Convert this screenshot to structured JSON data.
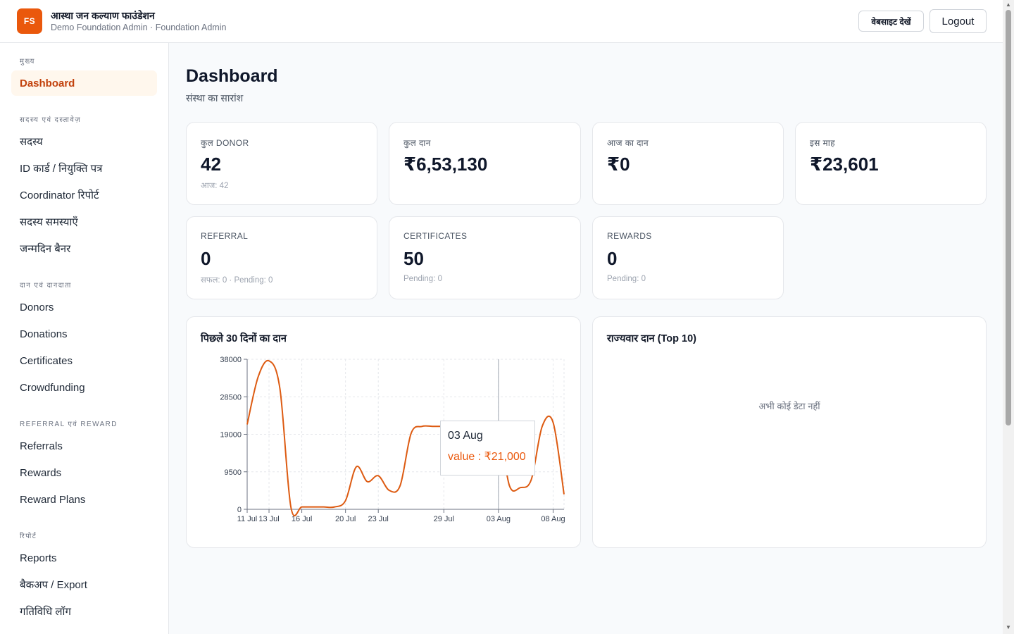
{
  "header": {
    "logo_text": "FS",
    "org_name": "आस्था जन कल्याण फाउंडेशन",
    "org_sub": "Demo Foundation Admin · Foundation Admin",
    "website_button": "वेबसाइट देखें",
    "logout_button": "Logout"
  },
  "sidebar": {
    "sections": [
      {
        "title": "मुख्य",
        "items": [
          "Dashboard"
        ]
      },
      {
        "title": "सदस्य एवं दस्तावेज़",
        "items": [
          "सदस्य",
          "ID कार्ड / नियुक्ति पत्र",
          "Coordinator रिपोर्ट",
          "सदस्य समस्याएँ",
          "जन्मदिन बैनर"
        ]
      },
      {
        "title": "दान एवं दानदाता",
        "items": [
          "Donors",
          "Donations",
          "Certificates",
          "Crowdfunding"
        ]
      },
      {
        "title": "Referral एवं Reward",
        "items": [
          "Referrals",
          "Rewards",
          "Reward Plans"
        ]
      },
      {
        "title": "रिपोर्ट",
        "items": [
          "Reports",
          "बैकअप / Export",
          "गतिविधि लॉग"
        ]
      }
    ],
    "active_item": "Dashboard"
  },
  "page": {
    "title": "Dashboard",
    "subtitle": "संस्था का सारांश"
  },
  "stats": [
    {
      "label": "कुल DONOR",
      "value": "42",
      "note": "आज: 42"
    },
    {
      "label": "कुल दान",
      "value": "₹6,53,130",
      "note": ""
    },
    {
      "label": "आज का दान",
      "value": "₹0",
      "note": ""
    },
    {
      "label": "इस माह",
      "value": "₹23,601",
      "note": ""
    },
    {
      "label": "REFERRAL",
      "value": "0",
      "note": "सफल: 0 · Pending: 0"
    },
    {
      "label": "CERTIFICATES",
      "value": "50",
      "note": "Pending: 0"
    },
    {
      "label": "REWARDS",
      "value": "0",
      "note": "Pending: 0"
    }
  ],
  "donation_panel": {
    "title": "पिछले 30 दिनों का दान",
    "tooltip": {
      "date": "03 Aug",
      "value_text": "value : ₹21,000"
    }
  },
  "state_panel": {
    "title": "राज्यवार दान (Top 10)",
    "empty_text": "अभी कोई डेटा नहीं"
  },
  "chart_data": {
    "type": "line",
    "series": [
      {
        "x": [
          "11 Jul",
          "12 Jul",
          "13 Jul",
          "14 Jul",
          "15 Jul",
          "16 Jul",
          "17 Jul",
          "18 Jul",
          "19 Jul",
          "20 Jul",
          "21 Jul",
          "22 Jul",
          "23 Jul",
          "24 Jul",
          "25 Jul",
          "26 Jul",
          "27 Jul",
          "28 Jul",
          "29 Jul",
          "30 Jul",
          "31 Jul",
          "01 Aug",
          "02 Aug",
          "03 Aug",
          "04 Aug",
          "05 Aug",
          "06 Aug",
          "07 Aug",
          "08 Aug",
          "09 Aug"
        ],
        "values": [
          21500,
          33500,
          37600,
          30500,
          600,
          600,
          600,
          600,
          600,
          2200,
          10800,
          7000,
          8500,
          4800,
          6000,
          19200,
          21000,
          21000,
          21000,
          21000,
          21000,
          21000,
          21000,
          21000,
          6000,
          5500,
          7500,
          21000,
          22000,
          3800
        ]
      }
    ],
    "tick_labels": [
      "11 Jul",
      "13 Jul",
      "16 Jul",
      "20 Jul",
      "23 Jul",
      "29 Jul",
      "03 Aug",
      "08 Aug"
    ],
    "xlabel": "",
    "ylabel": "",
    "ylim": [
      0,
      38000
    ],
    "y_ticks": [
      0,
      9500,
      19000,
      28500,
      38000
    ],
    "grid": true,
    "line_color": "#dd5b12"
  }
}
